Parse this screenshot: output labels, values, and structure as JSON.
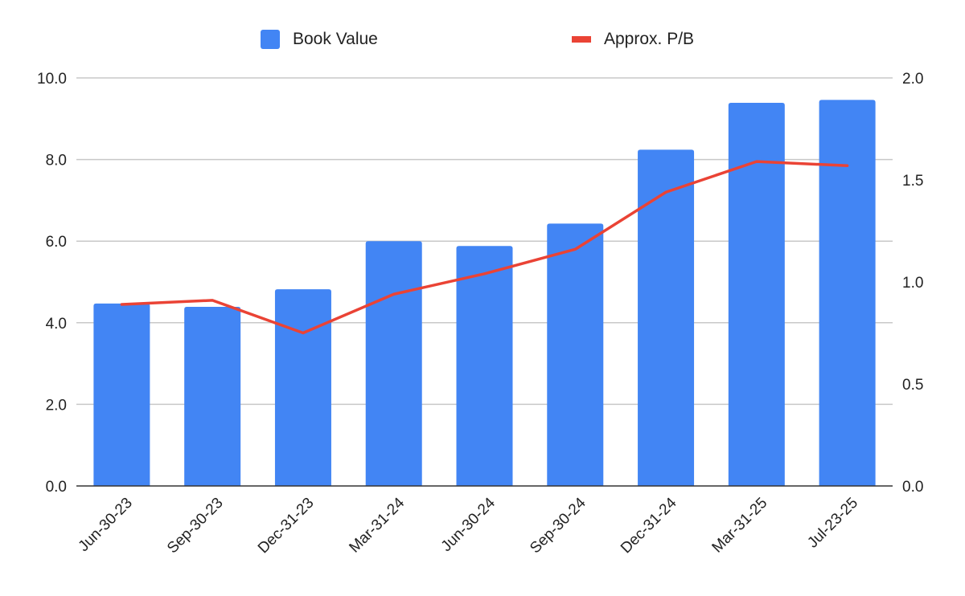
{
  "chart_data": {
    "type": "bar",
    "categories": [
      "Jun-30-23",
      "Sep-30-23",
      "Dec-31-23",
      "Mar-31-24",
      "Jun-30-24",
      "Sep-30-24",
      "Dec-31-24",
      "Mar-31-25",
      "Jul-23-25"
    ],
    "series": [
      {
        "name": "Book Value",
        "type": "bar",
        "axis": "left",
        "color": "#4285f4",
        "values": [
          4.47,
          4.39,
          4.82,
          6.0,
          5.88,
          6.43,
          8.24,
          9.39,
          9.46
        ]
      },
      {
        "name": "Approx. P/B",
        "type": "line",
        "axis": "right",
        "color": "#ea4335",
        "values": [
          0.89,
          0.91,
          0.75,
          0.94,
          1.04,
          1.16,
          1.44,
          1.59,
          1.57
        ]
      }
    ],
    "title": "",
    "xlabel": "",
    "ylabel": "",
    "y_left": {
      "min": 0,
      "max": 10,
      "ticks": [
        "0.0",
        "2.0",
        "4.0",
        "6.0",
        "8.0",
        "10.0"
      ]
    },
    "y_right": {
      "min": 0,
      "max": 2,
      "ticks": [
        "0.0",
        "0.5",
        "1.0",
        "1.5",
        "2.0"
      ]
    },
    "grid": true,
    "legend_position": "top-center"
  }
}
